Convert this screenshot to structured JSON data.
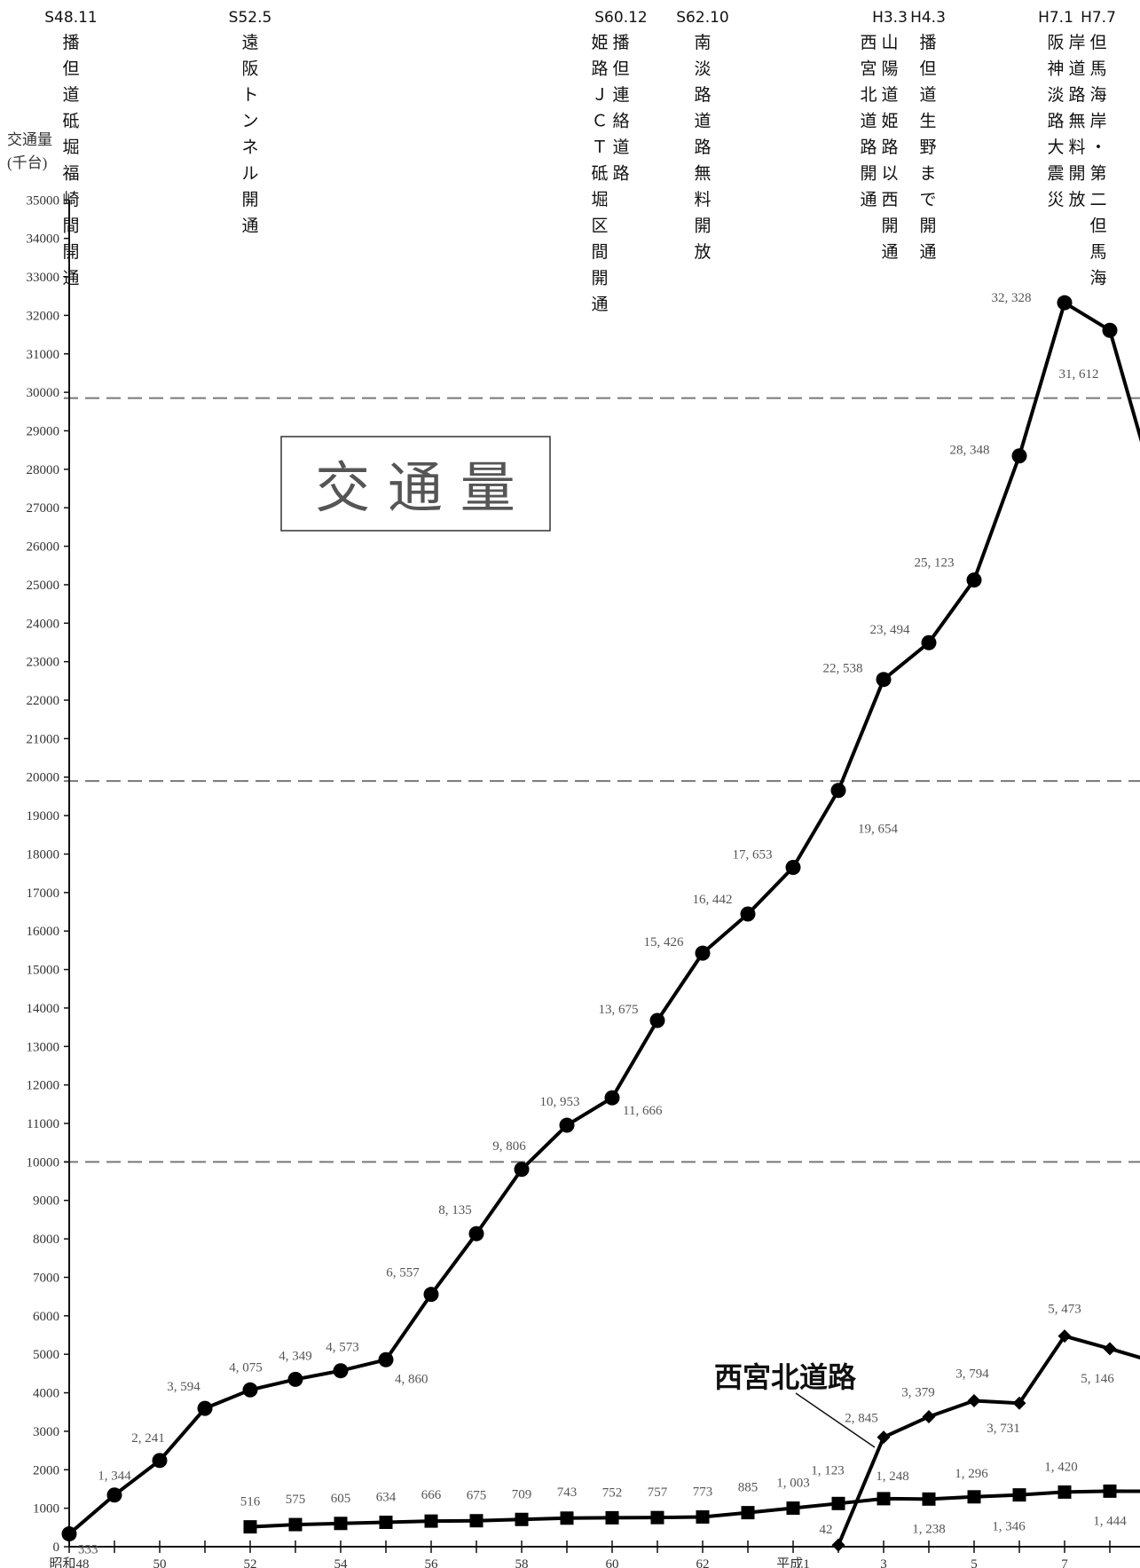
{
  "chart_data": {
    "type": "line",
    "ylabel_line1": "交通量",
    "ylabel_line2": "(千台)",
    "title": "交 通 量",
    "ylim": [
      0,
      35000
    ],
    "yticks": [
      0,
      1000,
      2000,
      3000,
      4000,
      5000,
      6000,
      7000,
      8000,
      9000,
      10000,
      11000,
      12000,
      13000,
      14000,
      15000,
      16000,
      17000,
      18000,
      19000,
      20000,
      21000,
      22000,
      23000,
      24000,
      25000,
      26000,
      27000,
      28000,
      29000,
      30000,
      31000,
      32000,
      33000,
      34000,
      35000
    ],
    "x_range": [
      1973,
      1996.7
    ],
    "x_tick_labels": [
      {
        "x": 1973,
        "label": "昭和48"
      },
      {
        "x": 1975,
        "label": "50"
      },
      {
        "x": 1977,
        "label": "52"
      },
      {
        "x": 1979,
        "label": "54"
      },
      {
        "x": 1981,
        "label": "56"
      },
      {
        "x": 1983,
        "label": "58"
      },
      {
        "x": 1985,
        "label": "60"
      },
      {
        "x": 1987,
        "label": "62"
      },
      {
        "x": 1989,
        "label": "平成1"
      },
      {
        "x": 1991,
        "label": "3"
      },
      {
        "x": 1993,
        "label": "5"
      },
      {
        "x": 1995,
        "label": "7"
      }
    ],
    "reference_lines": [
      10000,
      19900,
      29850
    ],
    "series": [
      {
        "marker": "circle",
        "x": [
          1973,
          1974,
          1975,
          1976,
          1977,
          1978,
          1979,
          1980,
          1981,
          1982,
          1983,
          1984,
          1985,
          1986,
          1987,
          1988,
          1989,
          1990,
          1991,
          1992,
          1993,
          1994,
          1995,
          1996,
          1997
        ],
        "values": [
          333,
          1344,
          2241,
          3594,
          4075,
          4349,
          4573,
          4860,
          6557,
          8135,
          9806,
          10953,
          11666,
          13675,
          15426,
          16442,
          17653,
          19654,
          22538,
          23494,
          25123,
          28348,
          32328,
          31612,
          27500
        ],
        "labels": [
          "333",
          "1, 344",
          "2, 241",
          "3, 594",
          "4, 075",
          "4, 349",
          "4, 573",
          "4, 860",
          "6, 557",
          "8, 135",
          "9, 806",
          "10, 953",
          "11, 666",
          "13, 675",
          "15, 426",
          "16, 442",
          "17, 653",
          "19, 654",
          "22, 538",
          "23, 494",
          "25, 123",
          "28, 348",
          "32, 328",
          "31, 612",
          ""
        ]
      },
      {
        "marker": "square",
        "x": [
          1977,
          1978,
          1979,
          1980,
          1981,
          1982,
          1983,
          1984,
          1985,
          1986,
          1987,
          1988,
          1989,
          1990,
          1991,
          1992,
          1993,
          1994,
          1995,
          1996,
          1997
        ],
        "values": [
          516,
          575,
          605,
          634,
          666,
          675,
          709,
          743,
          752,
          757,
          773,
          885,
          1003,
          1123,
          1248,
          1238,
          1296,
          1346,
          1420,
          1444,
          1440
        ],
        "labels": [
          "516",
          "575",
          "605",
          "634",
          "666",
          "675",
          "709",
          "743",
          "752",
          "757",
          "773",
          "885",
          "1, 003",
          "1, 123",
          "1, 248",
          "1, 238",
          "1, 296",
          "1, 346",
          "1, 420",
          "1, 444",
          ""
        ]
      },
      {
        "name": "西宮北道路",
        "marker": "diamond",
        "x": [
          1990,
          1991,
          1992,
          1993,
          1994,
          1995,
          1996,
          1997
        ],
        "values": [
          42,
          2845,
          3379,
          3794,
          3731,
          5473,
          5146,
          4800
        ],
        "labels": [
          "42",
          "2, 845",
          "3, 379",
          "3, 794",
          "3, 731",
          "5, 473",
          "5, 146",
          ""
        ]
      }
    ],
    "events": [
      {
        "x": 1973,
        "date": "S48.11",
        "text": "播但道砥堀福崎間開通"
      },
      {
        "x": 1977,
        "date": "S52.5",
        "text": "遠阪トンネル開通"
      },
      {
        "x": 1985,
        "date": "S60.12",
        "text": "姫路ＪＣＴ砥堀区間開通"
      },
      {
        "x": 1985,
        "date": "",
        "text": "播但連絡道路"
      },
      {
        "x": 1987,
        "date": "S62.10",
        "text": "南淡路道路無料開放"
      },
      {
        "x": 1991,
        "date": "H3.3",
        "text": "西宮北道路開通"
      },
      {
        "x": 1991,
        "date": "",
        "text": "山陽道姫路以西開通"
      },
      {
        "x": 1992,
        "date": "H4.3",
        "text": "播但道生野まで開通"
      },
      {
        "x": 1995,
        "date": "H7.1",
        "text": "阪神淡路大震災"
      },
      {
        "x": 1995,
        "date": "H7.7",
        "text": "岸道路無料開放"
      },
      {
        "x": 1996,
        "date": "",
        "text": "但馬海岸・第二但馬海"
      }
    ]
  }
}
